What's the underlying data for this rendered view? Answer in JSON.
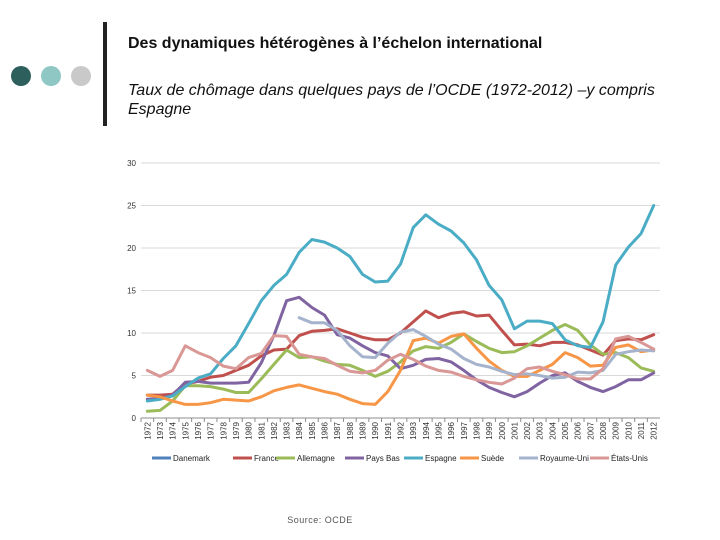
{
  "slide": {
    "title": "Des dynamiques hétérogènes à l’échelon international",
    "subtitle": "Taux de chômage dans quelques pays de l’OCDE (1972-2012) –y compris Espagne",
    "source": "Source: OCDE",
    "dot_colors": [
      "#2d5f5d",
      "#8fc7c5",
      "#c9c9c9"
    ]
  },
  "chart_data": {
    "type": "line",
    "title": "",
    "xlabel": "",
    "ylabel": "",
    "ylim": [
      0,
      30
    ],
    "yticks": [
      0,
      5,
      10,
      15,
      20,
      25,
      30
    ],
    "grid": "horizontal",
    "legend_position": "bottom",
    "x": [
      1972,
      1973,
      1974,
      1975,
      1976,
      1977,
      1978,
      1979,
      1980,
      1981,
      1982,
      1983,
      1984,
      1985,
      1986,
      1987,
      1988,
      1989,
      1990,
      1991,
      1992,
      1993,
      1994,
      1995,
      1996,
      1997,
      1998,
      1999,
      2000,
      2001,
      2002,
      2003,
      2004,
      2005,
      2006,
      2007,
      2008,
      2009,
      2010,
      2011,
      2012
    ],
    "series": [
      {
        "name": "Danemark",
        "color": "#4f81bd",
        "values": [
          null,
          null,
          null,
          null,
          null,
          null,
          null,
          null,
          null,
          null,
          null,
          null,
          null,
          null,
          null,
          null,
          null,
          null,
          null,
          null,
          null,
          null,
          null,
          null,
          null,
          null,
          null,
          null,
          null,
          null,
          null,
          null,
          null,
          null,
          null,
          null,
          null,
          null,
          null,
          null,
          null
        ]
      },
      {
        "name": "France",
        "color": "#c0504d",
        "values": [
          2.7,
          2.7,
          2.8,
          4.0,
          4.3,
          4.8,
          5.0,
          5.6,
          6.2,
          7.3,
          8.0,
          8.1,
          9.7,
          10.2,
          10.3,
          10.5,
          10.0,
          9.5,
          9.2,
          9.2,
          10.0,
          11.3,
          12.6,
          11.8,
          12.3,
          12.5,
          12.0,
          12.1,
          10.3,
          8.6,
          8.7,
          8.5,
          8.9,
          8.9,
          8.6,
          8.0,
          7.4,
          9.1,
          9.3,
          9.2,
          9.8
        ]
      },
      {
        "name": "Allemagne",
        "color": "#9bbb59",
        "values": [
          0.8,
          0.9,
          2.0,
          3.8,
          3.8,
          3.7,
          3.4,
          3.0,
          3.0,
          4.6,
          6.3,
          8.0,
          7.1,
          7.2,
          6.7,
          6.3,
          6.2,
          5.6,
          4.9,
          5.5,
          6.6,
          7.9,
          8.4,
          8.2,
          8.9,
          9.9,
          9.0,
          8.2,
          7.7,
          7.8,
          8.5,
          9.4,
          10.3,
          11.0,
          10.3,
          8.6,
          7.5,
          7.7,
          7.1,
          5.9,
          5.5
        ]
      },
      {
        "name": "Pays Bas",
        "color": "#8064a2",
        "values": [
          2.2,
          2.3,
          2.7,
          4.2,
          4.3,
          4.1,
          4.1,
          4.1,
          4.2,
          6.5,
          9.7,
          13.8,
          14.2,
          13.0,
          12.1,
          9.8,
          9.4,
          8.5,
          7.7,
          7.3,
          5.8,
          6.2,
          6.9,
          7.0,
          6.6,
          5.6,
          4.5,
          3.6,
          3.0,
          2.5,
          3.1,
          4.1,
          5.0,
          5.3,
          4.3,
          3.6,
          3.1,
          3.7,
          4.5,
          4.5,
          5.3
        ]
      },
      {
        "name": "Espagne",
        "color": "#4bacc6",
        "values": [
          2.0,
          2.2,
          2.6,
          3.7,
          4.7,
          5.2,
          7.0,
          8.5,
          11.1,
          13.8,
          15.6,
          16.9,
          19.5,
          21.0,
          20.7,
          20.0,
          19.0,
          16.9,
          16.0,
          16.1,
          18.1,
          22.4,
          23.9,
          22.8,
          22.0,
          20.6,
          18.6,
          15.6,
          13.9,
          10.5,
          11.4,
          11.4,
          11.1,
          9.2,
          8.5,
          8.3,
          11.3,
          18.0,
          20.1,
          21.7,
          25.0
        ]
      },
      {
        "name": "Suède",
        "color": "#f79646",
        "values": [
          2.7,
          2.5,
          2.0,
          1.6,
          1.6,
          1.8,
          2.2,
          2.1,
          2.0,
          2.5,
          3.2,
          3.6,
          3.9,
          3.5,
          3.1,
          2.8,
          2.2,
          1.7,
          1.6,
          3.1,
          5.6,
          9.1,
          9.4,
          8.8,
          9.6,
          9.9,
          8.2,
          6.7,
          5.6,
          4.9,
          4.9,
          5.6,
          6.3,
          7.7,
          7.1,
          6.1,
          6.2,
          8.3,
          8.6,
          7.8,
          8.0
        ]
      },
      {
        "name": "Royaume-Uni",
        "color": "#a5b3cc",
        "values": [
          null,
          null,
          null,
          null,
          null,
          null,
          null,
          null,
          null,
          null,
          null,
          null,
          11.8,
          11.2,
          11.2,
          10.3,
          8.5,
          7.2,
          7.1,
          8.8,
          10.1,
          10.4,
          9.6,
          8.7,
          8.1,
          7.0,
          6.3,
          6.0,
          5.5,
          5.1,
          5.2,
          5.0,
          4.7,
          4.8,
          5.4,
          5.3,
          5.6,
          7.5,
          7.8,
          8.0,
          7.9
        ]
      },
      {
        "name": "États-Unis",
        "color": "#d99795",
        "values": [
          5.6,
          4.9,
          5.6,
          8.5,
          7.7,
          7.1,
          6.1,
          5.8,
          7.1,
          7.6,
          9.7,
          9.6,
          7.5,
          7.2,
          7.0,
          6.2,
          5.5,
          5.3,
          5.6,
          6.8,
          7.5,
          6.9,
          6.1,
          5.6,
          5.4,
          4.9,
          4.5,
          4.2,
          4.0,
          4.7,
          5.8,
          6.0,
          5.5,
          5.1,
          4.6,
          4.6,
          5.8,
          9.3,
          9.6,
          8.9,
          8.1
        ]
      }
    ]
  }
}
